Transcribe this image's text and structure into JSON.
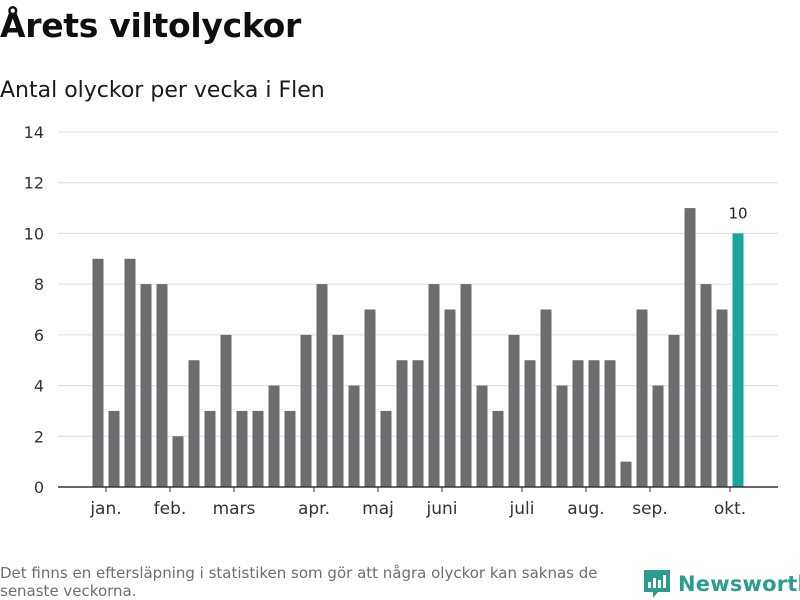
{
  "title": "Årets viltolyckor",
  "subtitle": "Antal olyckor per vecka i Flen",
  "footnote": "Det finns en eftersläpning i statistiken som gör att några olyckor kan saknas de senaste veckorna.",
  "brand": {
    "name": "Newsworthy",
    "icon": "newsworthy-logo-icon"
  },
  "colors": {
    "bar": "#6d6c70",
    "highlight": "#1aa59a",
    "grid": "#dcdcdc",
    "axis": "#333333",
    "brand": "#2a9d8f"
  },
  "chart_data": {
    "type": "bar",
    "x": [
      1,
      2,
      3,
      4,
      5,
      6,
      7,
      8,
      9,
      10,
      11,
      12,
      13,
      14,
      15,
      16,
      17,
      18,
      19,
      20,
      21,
      22,
      23,
      24,
      25,
      26,
      27,
      28,
      29,
      30,
      31,
      32,
      33,
      34,
      35,
      36,
      37,
      38,
      39,
      40,
      41
    ],
    "values": [
      9,
      3,
      9,
      8,
      8,
      2,
      5,
      3,
      6,
      3,
      3,
      4,
      3,
      6,
      8,
      6,
      4,
      7,
      3,
      5,
      5,
      8,
      7,
      8,
      4,
      3,
      6,
      5,
      7,
      4,
      5,
      5,
      5,
      1,
      7,
      4,
      6,
      11,
      8,
      7,
      10
    ],
    "highlight_index": 40,
    "highlight_label": "10",
    "ylim": [
      0,
      14
    ],
    "yticks": [
      0,
      2,
      4,
      6,
      8,
      10,
      12,
      14
    ],
    "x_tick_labels": [
      {
        "label": "jan.",
        "at": 1.5
      },
      {
        "label": "feb.",
        "at": 5.5
      },
      {
        "label": "mars",
        "at": 9.5
      },
      {
        "label": "apr.",
        "at": 14.5
      },
      {
        "label": "maj",
        "at": 18.5
      },
      {
        "label": "juni",
        "at": 22.5
      },
      {
        "label": "juli",
        "at": 27.5
      },
      {
        "label": "aug.",
        "at": 31.5
      },
      {
        "label": "sep.",
        "at": 35.5
      },
      {
        "label": "okt.",
        "at": 40.5
      }
    ],
    "grid": true
  }
}
